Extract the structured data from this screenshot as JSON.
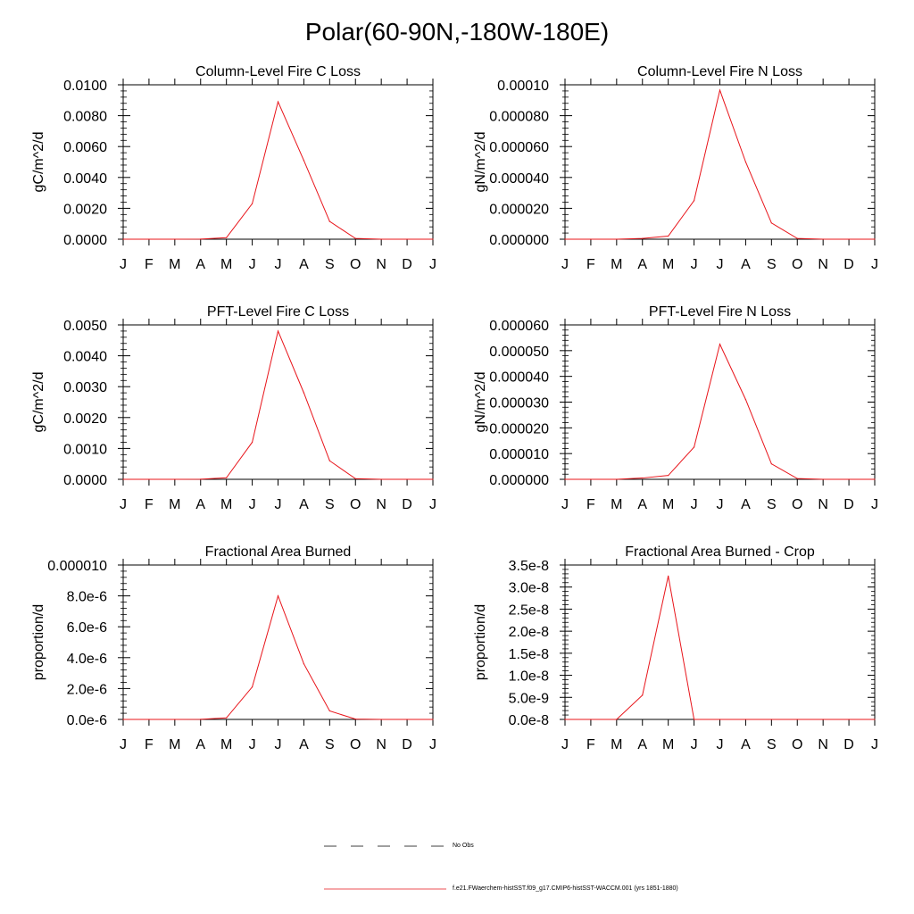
{
  "title": "Polar(60-90N,-180W-180E)",
  "legend": {
    "obs_label": "No Obs",
    "model_label": "f.e21.FWaerchem-histSST.f09_g17.CMIP6-histSST-WACCM.001 (yrs 1851-1880)",
    "model_color": "#e8141a",
    "obs_color": "#000000"
  },
  "chart_data": [
    {
      "type": "line",
      "title": "Column-Level Fire C Loss",
      "ylabel": "gC/m^2/d",
      "categories": [
        "J",
        "F",
        "M",
        "A",
        "M",
        "J",
        "J",
        "A",
        "S",
        "O",
        "N",
        "D",
        "J"
      ],
      "ylim": [
        0,
        0.01
      ],
      "yticks": [
        0,
        0.002,
        0.004,
        0.006,
        0.008,
        0.01
      ],
      "ytick_labels": [
        "0.0000",
        "0.0020",
        "0.0040",
        "0.0060",
        "0.0080",
        "0.0100"
      ],
      "series": [
        {
          "values": [
            0,
            0,
            0,
            1e-05,
            0.0001,
            0.0023,
            0.0089,
            0.0051,
            0.00115,
            5e-05,
            0,
            0,
            0
          ]
        }
      ]
    },
    {
      "type": "line",
      "title": "Column-Level Fire N Loss",
      "ylabel": "gN/m^2/d",
      "categories": [
        "J",
        "F",
        "M",
        "A",
        "M",
        "J",
        "J",
        "A",
        "S",
        "O",
        "N",
        "D",
        "J"
      ],
      "ylim": [
        0,
        0.0001
      ],
      "yticks": [
        0,
        2e-05,
        4e-05,
        6e-05,
        8e-05,
        0.0001
      ],
      "ytick_labels": [
        "0.000000",
        "0.000020",
        "0.000040",
        "0.000060",
        "0.000080",
        "0.00010"
      ],
      "series": [
        {
          "values": [
            0,
            0,
            0,
            5e-07,
            2e-06,
            2.5e-05,
            9.65e-05,
            5e-05,
            1.05e-05,
            5e-07,
            0,
            0,
            0
          ]
        }
      ]
    },
    {
      "type": "line",
      "title": "PFT-Level Fire C Loss",
      "ylabel": "gC/m^2/d",
      "categories": [
        "J",
        "F",
        "M",
        "A",
        "M",
        "J",
        "J",
        "A",
        "S",
        "O",
        "N",
        "D",
        "J"
      ],
      "ylim": [
        0,
        0.005
      ],
      "yticks": [
        0,
        0.001,
        0.002,
        0.003,
        0.004,
        0.005
      ],
      "ytick_labels": [
        "0.0000",
        "0.0010",
        "0.0020",
        "0.0030",
        "0.0040",
        "0.0050"
      ],
      "series": [
        {
          "values": [
            0,
            0,
            0,
            5e-06,
            5e-05,
            0.0012,
            0.0048,
            0.0028,
            0.0006,
            2e-05,
            0,
            0,
            0
          ]
        }
      ]
    },
    {
      "type": "line",
      "title": "PFT-Level Fire N Loss",
      "ylabel": "gN/m^2/d",
      "categories": [
        "J",
        "F",
        "M",
        "A",
        "M",
        "J",
        "J",
        "A",
        "S",
        "O",
        "N",
        "D",
        "J"
      ],
      "ylim": [
        0,
        6e-05
      ],
      "yticks": [
        0,
        1e-05,
        2e-05,
        3e-05,
        4e-05,
        5e-05,
        6e-05
      ],
      "ytick_labels": [
        "0.000000",
        "0.000010",
        "0.000020",
        "0.000030",
        "0.000040",
        "0.000050",
        "0.000060"
      ],
      "series": [
        {
          "values": [
            0,
            0,
            0,
            5e-07,
            1.5e-06,
            1.25e-05,
            5.25e-05,
            3.1e-05,
            6e-06,
            3e-07,
            0,
            0,
            0
          ]
        }
      ]
    },
    {
      "type": "line",
      "title": "Fractional Area Burned",
      "ylabel": "proportion/d",
      "categories": [
        "J",
        "F",
        "M",
        "A",
        "M",
        "J",
        "J",
        "A",
        "S",
        "O",
        "N",
        "D",
        "J"
      ],
      "ylim": [
        0,
        1e-05
      ],
      "yticks": [
        0,
        2e-06,
        4e-06,
        6e-06,
        8e-06,
        1e-05
      ],
      "ytick_labels": [
        "0.0e-6",
        "2.0e-6",
        "4.0e-6",
        "6.0e-6",
        "8.0e-6",
        "0.000010"
      ],
      "series": [
        {
          "values": [
            0,
            0,
            0,
            1e-08,
            1e-07,
            2.1e-06,
            8e-06,
            3.6e-06,
            5.5e-07,
            2e-08,
            0,
            0,
            0
          ]
        }
      ]
    },
    {
      "type": "line",
      "title": "Fractional Area Burned - Crop",
      "ylabel": "proportion/d",
      "categories": [
        "J",
        "F",
        "M",
        "A",
        "M",
        "J",
        "J",
        "A",
        "S",
        "O",
        "N",
        "D",
        "J"
      ],
      "ylim": [
        0,
        3.5e-08
      ],
      "yticks": [
        0,
        5e-09,
        1e-08,
        1.5e-08,
        2e-08,
        2.5e-08,
        3e-08,
        3.5e-08
      ],
      "ytick_labels": [
        "0.0e-8",
        "5.0e-9",
        "1.0e-8",
        "1.5e-8",
        "2.0e-8",
        "2.5e-8",
        "3.0e-8",
        "3.5e-8"
      ],
      "series": [
        {
          "values": [
            0,
            0,
            0,
            5.5e-09,
            3.25e-08,
            0,
            0,
            0,
            0,
            0,
            0,
            0,
            0
          ]
        }
      ]
    }
  ]
}
